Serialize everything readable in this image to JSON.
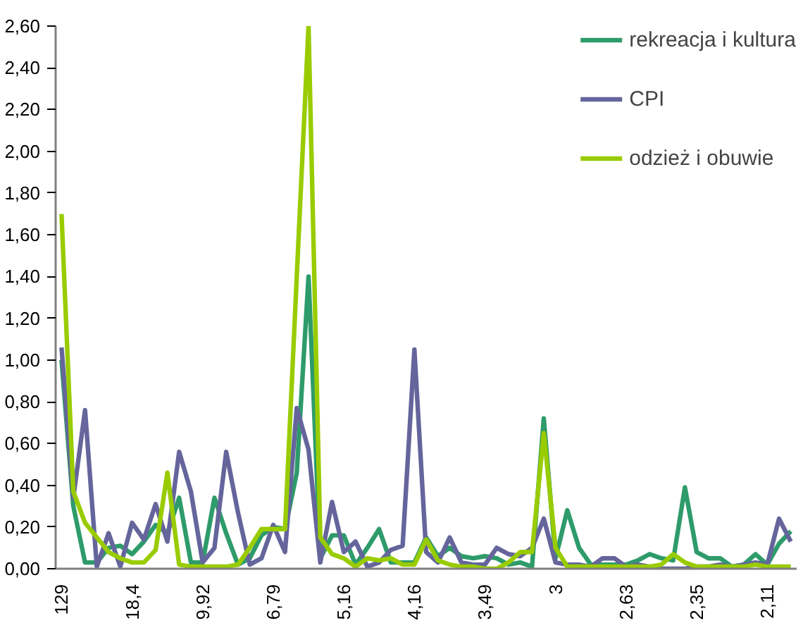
{
  "chart_data": {
    "type": "line",
    "categories": [
      "129",
      null,
      null,
      null,
      null,
      null,
      "18,4",
      null,
      null,
      null,
      null,
      null,
      "9,92",
      null,
      null,
      null,
      null,
      null,
      "6,79",
      null,
      null,
      null,
      null,
      null,
      "5,16",
      null,
      null,
      null,
      null,
      null,
      "4,16",
      null,
      null,
      null,
      null,
      null,
      "3,49",
      null,
      null,
      null,
      null,
      null,
      "3",
      null,
      null,
      null,
      null,
      null,
      "2,63",
      null,
      null,
      null,
      null,
      null,
      "2,35",
      null,
      null,
      null,
      null,
      null,
      "2,11",
      null,
      null
    ],
    "series": [
      {
        "name": "rekreacja i kultura",
        "color": "#2e9b6a",
        "values": [
          1.0,
          0.3,
          0.03,
          0.03,
          0.1,
          0.11,
          0.07,
          0.13,
          0.21,
          0.17,
          0.34,
          0.03,
          0.03,
          0.34,
          0.17,
          0.02,
          0.05,
          0.16,
          0.2,
          0.19,
          0.46,
          1.4,
          0.05,
          0.16,
          0.16,
          0.02,
          0.1,
          0.19,
          0.03,
          0.03,
          0.03,
          0.15,
          0.06,
          0.1,
          0.06,
          0.05,
          0.06,
          0.05,
          0.02,
          0.03,
          0.01,
          0.72,
          0.05,
          0.28,
          0.1,
          0.02,
          0.02,
          0.02,
          0.02,
          0.04,
          0.07,
          0.05,
          0.04,
          0.39,
          0.08,
          0.05,
          0.05,
          0.01,
          0.02,
          0.07,
          0.02,
          0.12,
          0.18
        ]
      },
      {
        "name": "CPI",
        "color": "#65659c",
        "values": [
          1.06,
          0.34,
          0.76,
          0.01,
          0.17,
          0.01,
          0.22,
          0.14,
          0.31,
          0.13,
          0.56,
          0.37,
          0.03,
          0.1,
          0.56,
          0.27,
          0.02,
          0.05,
          0.21,
          0.08,
          0.77,
          0.57,
          0.03,
          0.32,
          0.08,
          0.13,
          0.01,
          0.03,
          0.09,
          0.11,
          1.05,
          0.08,
          0.03,
          0.15,
          0.03,
          0.02,
          0.02,
          0.1,
          0.07,
          0.06,
          0.1,
          0.24,
          0.03,
          0.02,
          0.02,
          0.01,
          0.05,
          0.05,
          0.01,
          0.02,
          0.01,
          0.0,
          0.0,
          0.0,
          0.01,
          0.01,
          0.02,
          0.01,
          0.02,
          0.03,
          0.02,
          0.24,
          0.13
        ]
      },
      {
        "name": "odzież i obuwie",
        "color": "#99cc00",
        "values": [
          1.7,
          0.37,
          0.22,
          0.15,
          0.08,
          0.05,
          0.03,
          0.03,
          0.09,
          0.46,
          0.02,
          0.01,
          0.01,
          0.01,
          0.01,
          0.02,
          0.1,
          0.19,
          0.19,
          0.19,
          1.4,
          2.6,
          0.15,
          0.07,
          0.05,
          0.01,
          0.05,
          0.04,
          0.05,
          0.02,
          0.02,
          0.14,
          0.04,
          0.02,
          0.01,
          0.01,
          0.0,
          0.0,
          0.03,
          0.08,
          0.08,
          0.65,
          0.1,
          0.01,
          0.01,
          0.01,
          0.01,
          0.01,
          0.01,
          0.01,
          0.01,
          0.02,
          0.07,
          0.03,
          0.01,
          0.01,
          0.01,
          0.01,
          0.01,
          0.02,
          0.01,
          0.01,
          0.01
        ]
      }
    ],
    "ylim": [
      0,
      2.6
    ],
    "yticks": [
      {
        "value": 0,
        "label": "0,00"
      },
      {
        "value": 0.2,
        "label": "0,20"
      },
      {
        "value": 0.4,
        "label": "0,40"
      },
      {
        "value": 0.6,
        "label": "0,60"
      },
      {
        "value": 0.8,
        "label": "0,80"
      },
      {
        "value": 1.0,
        "label": "1,00"
      },
      {
        "value": 1.2,
        "label": "1,20"
      },
      {
        "value": 1.4,
        "label": "1,40"
      },
      {
        "value": 1.6,
        "label": "1,60"
      },
      {
        "value": 1.8,
        "label": "1,80"
      },
      {
        "value": 2.0,
        "label": "2,00"
      },
      {
        "value": 2.2,
        "label": "2,20"
      },
      {
        "value": 2.4,
        "label": "2,40"
      },
      {
        "value": 2.6,
        "label": "2,60"
      }
    ],
    "legend": "top right",
    "grid": false,
    "marker": "none",
    "line_style": "solid"
  }
}
